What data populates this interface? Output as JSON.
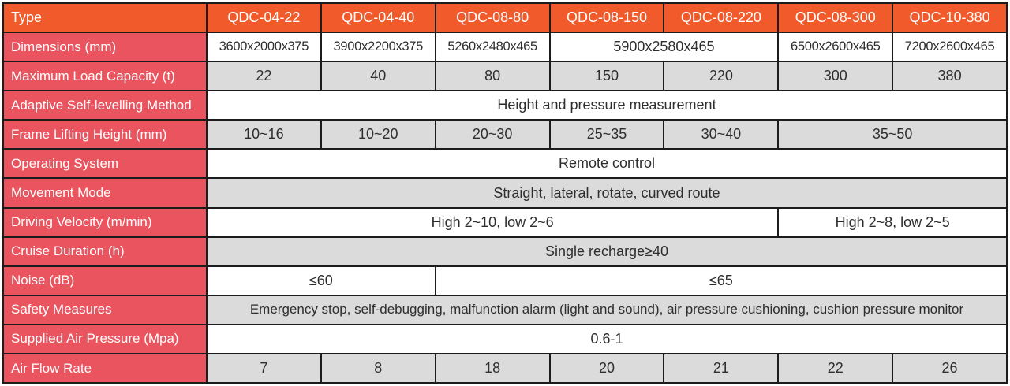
{
  "header": {
    "type_label": "Type",
    "columns": [
      "QDC-04-22",
      "QDC-04-40",
      "QDC-08-80",
      "QDC-08-150",
      "QDC-08-220",
      "QDC-08-300",
      "QDC-10-380"
    ]
  },
  "rows": [
    {
      "label": "Dimensions (mm)",
      "cells": [
        {
          "text": "3600x2000x375",
          "span": 1
        },
        {
          "text": "3900x2200x375",
          "span": 1
        },
        {
          "text": "5260x2480x465",
          "span": 1
        },
        {
          "text": "5900x2580x465",
          "span": 2,
          "faint_divider": true
        },
        {
          "text": "6500x2600x465",
          "span": 1
        },
        {
          "text": "7200x2600x465",
          "span": 1
        }
      ]
    },
    {
      "label": "Maximum Load Capacity (t)",
      "cells": [
        {
          "text": "22",
          "span": 1
        },
        {
          "text": "40",
          "span": 1
        },
        {
          "text": "80",
          "span": 1
        },
        {
          "text": "150",
          "span": 1
        },
        {
          "text": "220",
          "span": 1
        },
        {
          "text": "300",
          "span": 1
        },
        {
          "text": "380",
          "span": 1
        }
      ]
    },
    {
      "label": "Adaptive Self-levelling Method",
      "cells": [
        {
          "text": "Height and pressure measurement",
          "span": 7
        }
      ]
    },
    {
      "label": "Frame Lifting Height (mm)",
      "cells": [
        {
          "text": "10~16",
          "span": 1
        },
        {
          "text": "10~20",
          "span": 1
        },
        {
          "text": "20~30",
          "span": 1
        },
        {
          "text": "25~35",
          "span": 1
        },
        {
          "text": "30~40",
          "span": 1
        },
        {
          "text": "35~50",
          "span": 2
        }
      ]
    },
    {
      "label": "Operating System",
      "cells": [
        {
          "text": "Remote control",
          "span": 7
        }
      ]
    },
    {
      "label": "Movement Mode",
      "cells": [
        {
          "text": "Straight, lateral, rotate, curved route",
          "span": 7
        }
      ]
    },
    {
      "label": "Driving Velocity (m/min)",
      "cells": [
        {
          "text": "High 2~10, low 2~6",
          "span": 5
        },
        {
          "text": "High 2~8, low 2~5",
          "span": 2
        }
      ]
    },
    {
      "label": "Cruise Duration (h)",
      "cells": [
        {
          "text": "Single recharge≥40",
          "span": 7
        }
      ]
    },
    {
      "label": "Noise (dB)",
      "cells": [
        {
          "text": "≤60",
          "span": 2
        },
        {
          "text": "≤65",
          "span": 5
        }
      ]
    },
    {
      "label": "Safety Measures",
      "cells": [
        {
          "text": "Emergency stop, self-debugging, malfunction alarm (light and sound), air pressure cushioning, cushion pressure monitor",
          "span": 7
        }
      ]
    },
    {
      "label": "Supplied Air Pressure (Mpa)",
      "cells": [
        {
          "text": "0.6-1",
          "span": 7
        }
      ]
    },
    {
      "label": "Air Flow Rate",
      "cells": [
        {
          "text": "7",
          "span": 1
        },
        {
          "text": "8",
          "span": 1
        },
        {
          "text": "18",
          "span": 1
        },
        {
          "text": "20",
          "span": 1
        },
        {
          "text": "21",
          "span": 1
        },
        {
          "text": "22",
          "span": 1
        },
        {
          "text": "26",
          "span": 1
        }
      ]
    }
  ],
  "colors": {
    "header_orange": "#F15B2B",
    "label_red": "#E9545F",
    "cell_gray": "#DBDBDB",
    "grid_line": "#1C1C1C",
    "value_text": "#2E2E2E",
    "header_text": "#FFFFFF"
  }
}
